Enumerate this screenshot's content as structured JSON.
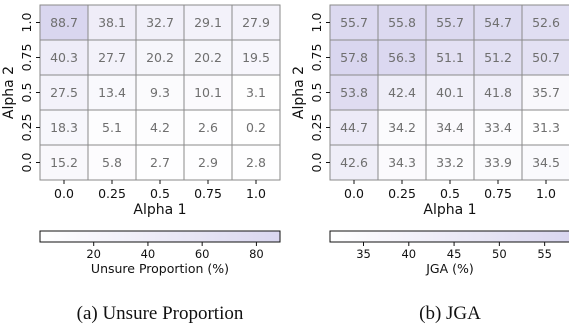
{
  "chart_data": [
    {
      "type": "heatmap",
      "caption": "(a) Unsure Proportion",
      "xlabel": "Alpha 1",
      "ylabel": "Alpha 2",
      "x_ticks": [
        "0.0",
        "0.25",
        "0.5",
        "0.75",
        "1.0"
      ],
      "y_ticks": [
        "1.0",
        "0.75",
        "0.5",
        "0.25",
        "0.0"
      ],
      "values": [
        [
          88.7,
          38.1,
          32.7,
          29.1,
          27.9
        ],
        [
          40.3,
          27.7,
          20.2,
          20.2,
          19.5
        ],
        [
          27.5,
          13.4,
          9.3,
          10.1,
          3.1
        ],
        [
          18.3,
          5.1,
          4.2,
          2.6,
          0.2
        ],
        [
          15.2,
          5.8,
          2.7,
          2.9,
          2.8
        ]
      ],
      "colorbar": {
        "label": "Unsure Proportion (%)",
        "ticks": [
          "20",
          "40",
          "60",
          "80"
        ],
        "tick_values": [
          20,
          40,
          60,
          80
        ],
        "range": [
          0.2,
          88.7
        ]
      },
      "color_low": "#ffffff",
      "color_high": "#d9d6ef"
    },
    {
      "type": "heatmap",
      "caption": "(b) JGA",
      "xlabel": "Alpha 1",
      "ylabel": "Alpha 2",
      "x_ticks": [
        "0.0",
        "0.25",
        "0.5",
        "0.75",
        "1.0"
      ],
      "y_ticks": [
        "1.0",
        "0.75",
        "0.5",
        "0.25",
        "0.0"
      ],
      "values": [
        [
          55.7,
          55.8,
          55.7,
          54.7,
          52.6
        ],
        [
          57.8,
          56.3,
          51.1,
          51.2,
          50.7
        ],
        [
          53.8,
          42.4,
          40.1,
          41.8,
          35.7
        ],
        [
          44.7,
          34.2,
          34.4,
          33.4,
          31.3
        ],
        [
          42.6,
          34.3,
          33.2,
          33.9,
          34.5
        ]
      ],
      "colorbar": {
        "label": "JGA (%)",
        "ticks": [
          "35",
          "40",
          "45",
          "50",
          "55"
        ],
        "tick_values": [
          35,
          40,
          45,
          50,
          55
        ],
        "range": [
          31.3,
          57.8
        ]
      },
      "color_low": "#ffffff",
      "color_high": "#d9d6ef"
    }
  ]
}
